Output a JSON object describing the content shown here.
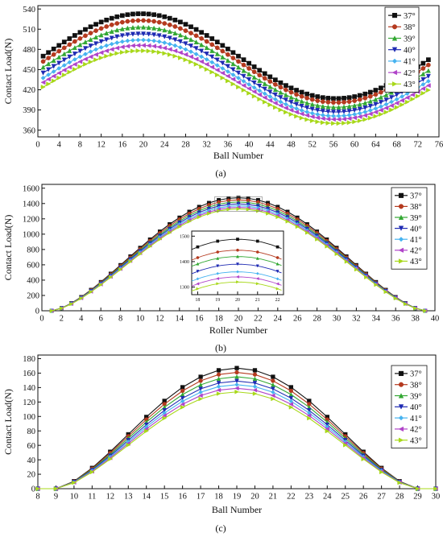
{
  "series_names": [
    "37°",
    "38°",
    "39°",
    "40°",
    "41°",
    "42°",
    "43°"
  ],
  "series_colors": [
    "#111111",
    "#b53a1f",
    "#33a833",
    "#1f2bb3",
    "#46b3f0",
    "#b044c9",
    "#a8d81a"
  ],
  "series_markers": [
    "square",
    "circle",
    "triangle-up",
    "triangle-down",
    "diamond",
    "triangle-left",
    "triangle-right"
  ],
  "chart_data": [
    {
      "type": "line",
      "panel_label": "(a)",
      "xlabel": "Ball Number",
      "ylabel": "Contact Load(N)",
      "xlim": [
        0,
        76
      ],
      "ylim": [
        350,
        545
      ],
      "xticks": [
        0,
        4,
        8,
        12,
        16,
        20,
        24,
        28,
        32,
        36,
        40,
        44,
        48,
        52,
        56,
        60,
        64,
        68,
        72,
        76
      ],
      "yticks": [
        360,
        390,
        420,
        450,
        480,
        510,
        540
      ],
      "grid": false,
      "legend_position": "top-right",
      "x": [
        1,
        19.5,
        56.5,
        74
      ],
      "series_peaks": [
        {
          "name": "37°",
          "start": 455,
          "max": 533,
          "min": 407,
          "end": 452
        },
        {
          "name": "38°",
          "start": 447,
          "max": 523,
          "min": 401,
          "end": 444
        },
        {
          "name": "39°",
          "start": 437,
          "max": 513,
          "min": 394,
          "end": 435
        },
        {
          "name": "40°",
          "start": 428,
          "max": 503,
          "min": 387,
          "end": 426
        },
        {
          "name": "41°",
          "start": 420,
          "max": 494,
          "min": 381,
          "end": 418
        },
        {
          "name": "42°",
          "start": 413,
          "max": 486,
          "min": 376,
          "end": 411
        },
        {
          "name": "43°",
          "start": 405,
          "max": 478,
          "min": 370,
          "end": 403
        }
      ],
      "x_range_points": [
        1,
        74
      ]
    },
    {
      "type": "line",
      "panel_label": "(b)",
      "xlabel": "Roller Number",
      "ylabel": "Contact Load(N)",
      "xlim": [
        0,
        40
      ],
      "ylim": [
        0,
        1650
      ],
      "xticks": [
        0,
        2,
        4,
        6,
        8,
        10,
        12,
        14,
        16,
        18,
        20,
        22,
        24,
        26,
        28,
        30,
        32,
        34,
        36,
        38,
        40
      ],
      "yticks": [
        0,
        200,
        400,
        600,
        800,
        1000,
        1200,
        1400,
        1600
      ],
      "grid": false,
      "legend_position": "top-right",
      "x_range_points": [
        1,
        39
      ],
      "center_x": 20,
      "zero_at": [
        1,
        39
      ],
      "series_peaks": [
        {
          "name": "37°",
          "max": 1475
        },
        {
          "name": "38°",
          "max": 1447
        },
        {
          "name": "39°",
          "max": 1420
        },
        {
          "name": "40°",
          "max": 1395
        },
        {
          "name": "41°",
          "max": 1371
        },
        {
          "name": "42°",
          "max": 1350
        },
        {
          "name": "43°",
          "max": 1330
        }
      ],
      "inset": {
        "xlim": [
          17.7,
          22.3
        ],
        "ylim": [
          1270,
          1520
        ],
        "xticks": [
          18,
          19,
          20,
          21,
          22
        ],
        "yticks": [
          1300,
          1400,
          1500
        ],
        "xtick_labels": [
          "18",
          "19",
          "20",
          "21",
          "22"
        ],
        "ytick_labels": [
          "1300",
          "1400",
          "1500"
        ]
      }
    },
    {
      "type": "line",
      "panel_label": "(c)",
      "xlabel": "Ball Number",
      "ylabel": "Contact Load(N)",
      "xlim": [
        8,
        30
      ],
      "ylim": [
        0,
        185
      ],
      "xticks": [
        8,
        9,
        10,
        11,
        12,
        13,
        14,
        15,
        16,
        17,
        18,
        19,
        20,
        21,
        22,
        23,
        24,
        25,
        26,
        27,
        28,
        29,
        30
      ],
      "yticks": [
        0,
        20,
        40,
        60,
        80,
        100,
        120,
        140,
        160,
        180
      ],
      "grid": false,
      "legend_position": "top-right",
      "x_range_points": [
        8,
        30
      ],
      "center_x": 19,
      "zero_at": [
        9,
        29
      ],
      "series_peaks": [
        {
          "name": "37°",
          "max": 167
        },
        {
          "name": "38°",
          "max": 161
        },
        {
          "name": "39°",
          "max": 155
        },
        {
          "name": "40°",
          "max": 149
        },
        {
          "name": "41°",
          "max": 144
        },
        {
          "name": "42°",
          "max": 139
        },
        {
          "name": "43°",
          "max": 134
        }
      ]
    }
  ]
}
